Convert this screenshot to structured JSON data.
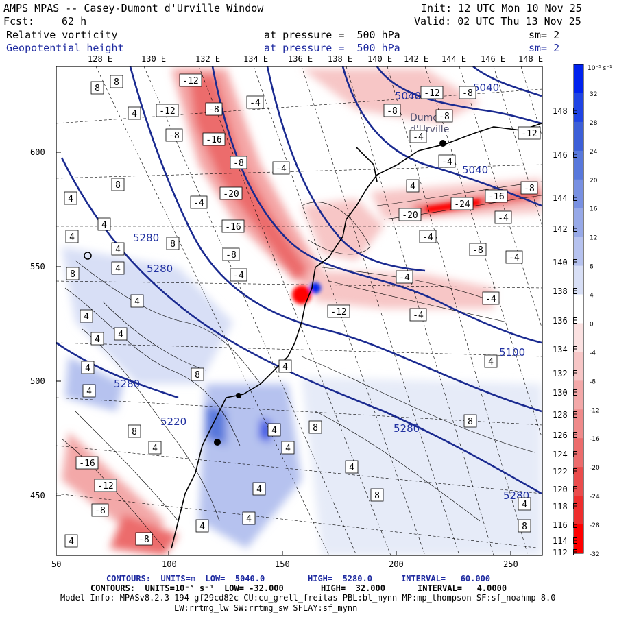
{
  "header": {
    "model": "AMPS MPAS -- Casey-Dumont d'Urville Window",
    "init": "Init: 12 UTC Mon 10 Nov 25",
    "fcst_label": "Fcst:",
    "fcst_value": "62 h",
    "valid": "Valid: 02 UTC Thu 13 Nov 25",
    "field1": "Relative vorticity",
    "field1_pressure": "at pressure =  500 hPa",
    "field1_sm": "sm= 2",
    "field2": "Geopotential height",
    "field2_pressure": "at pressure =  500 hPa",
    "field2_sm": "sm= 2"
  },
  "top_lon_labels": [
    "128 E",
    "130 E",
    "132 E",
    "134 E",
    "136 E",
    "138 E",
    "140 E",
    "142 E",
    "144 E",
    "146 E",
    "148 E"
  ],
  "right_lon_labels": [
    "148 E",
    "146 E",
    "144 E",
    "142 E",
    "140 E",
    "138 E",
    "136 E",
    "134 E",
    "132 E",
    "130 E",
    "128 E",
    "126 E",
    "124 E",
    "122 E",
    "120 E",
    "118 E",
    "116 E",
    "114 E",
    "112 E"
  ],
  "y_axis_labels": [
    "600",
    "550",
    "500",
    "450"
  ],
  "x_axis_labels": [
    "50",
    "100",
    "150",
    "200",
    "250"
  ],
  "colorbar": {
    "units": "10⁻⁵ s⁻¹",
    "ticks": [
      "32",
      "28",
      "24",
      "20",
      "16",
      "12",
      "8",
      "4",
      "0",
      "-4",
      "-8",
      "-12",
      "-16",
      "-20",
      "-24",
      "-28",
      "-32"
    ],
    "colors": [
      "#0022ee",
      "#1f44e4",
      "#3c5fd8",
      "#5878dc",
      "#7890e2",
      "#97a9e8",
      "#b6c2ef",
      "#d8dff6",
      "#ffffff",
      "#fbe1e1",
      "#f7c6c6",
      "#f3a8a8",
      "#ef8a8a",
      "#ec6c6c",
      "#ea4c4c",
      "#ee2d2d",
      "#ff0000"
    ]
  },
  "height_contour_labels": [
    "5040",
    "5040",
    "5040",
    "5100",
    "5280",
    "5280",
    "5280",
    "5280",
    "5280",
    "5220"
  ],
  "vort_labels_neg": [
    "-12",
    "-12",
    "-8",
    "-8",
    "-16",
    "-8",
    "-4",
    "-20",
    "-16",
    "-8",
    "-4",
    "-4",
    "-4",
    "-12",
    "-8",
    "-8",
    "-8",
    "-4",
    "-4",
    "-20",
    "-24",
    "-16",
    "-4",
    "-4",
    "-8",
    "-8",
    "-4",
    "-4",
    "-12",
    "-16",
    "-12",
    "-8",
    "-4",
    "-4",
    "-12",
    "-8"
  ],
  "vort_labels_pos": [
    "8",
    "8",
    "4",
    "8",
    "4",
    "4",
    "4",
    "8",
    "4",
    "4",
    "4",
    "4",
    "8",
    "4",
    "4",
    "8",
    "4",
    "4",
    "4",
    "8",
    "8",
    "4",
    "4",
    "4",
    "4",
    "4",
    "4",
    "8",
    "8",
    "8",
    "4",
    "4",
    "4",
    "4",
    "4"
  ],
  "station_labels": [
    "Dumont",
    "d'Urville"
  ],
  "footer": {
    "line1_a": "CONTOURS:  UNITS=m  LOW=  5040.0",
    "line1_b": "HIGH=  5280.0",
    "line1_c": "INTERVAL=   60.000",
    "line2_a": "CONTOURS:  UNITS=10⁻⁵ s⁻¹  LOW= -32.000",
    "line2_b": "HIGH=  32.000",
    "line2_c": "INTERVAL=   4.0000",
    "line3": "Model Info: MPASv8.2.3-194-gf29cd82c CU:cu_grell_freitas PBL:bl_mynn MP:mp_thompson SF:sf_noahmp 8.0",
    "line4": "LW:rrtmg_lw SW:rrtmg_sw SFLAY:sf_mynn"
  }
}
